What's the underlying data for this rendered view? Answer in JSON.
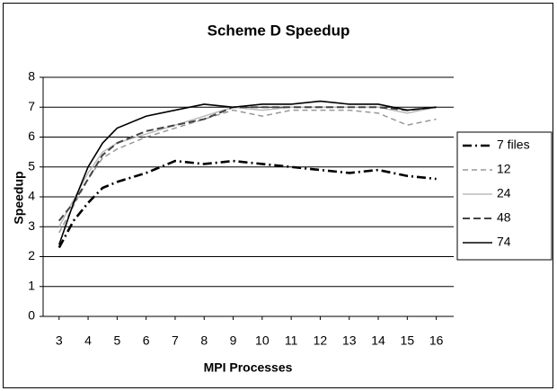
{
  "chart_data": {
    "type": "line",
    "title": "Scheme D Speedup",
    "x_label": "MPI Processes",
    "y_label": "Speedup",
    "x": [
      3,
      3.5,
      4,
      4.5,
      5,
      6,
      7,
      8,
      9,
      10,
      11,
      12,
      13,
      14,
      15,
      16
    ],
    "xlim": [
      2.45,
      16.6
    ],
    "xticks": [
      3,
      4,
      5,
      6,
      7,
      8,
      9,
      10,
      11,
      12,
      13,
      14,
      15,
      16
    ],
    "ylim": [
      0,
      8
    ],
    "yticks": [
      0,
      1,
      2,
      3,
      4,
      5,
      6,
      7,
      8
    ],
    "grid": true,
    "legend": "right",
    "series": [
      {
        "name": "7 files",
        "color": "#000000",
        "dash": "10 4 2 4",
        "width": 2.6,
        "values": [
          2.3,
          3.2,
          3.8,
          4.3,
          4.5,
          4.8,
          5.2,
          5.1,
          5.2,
          5.1,
          5.0,
          4.9,
          4.8,
          4.9,
          4.7,
          4.6
        ]
      },
      {
        "name": "12",
        "color": "#999999",
        "dash": "6 4",
        "width": 1.5,
        "values": [
          2.8,
          3.7,
          4.6,
          5.3,
          5.6,
          6.0,
          6.3,
          6.6,
          6.9,
          6.7,
          6.9,
          6.9,
          6.9,
          6.8,
          6.4,
          6.6
        ]
      },
      {
        "name": "24",
        "color": "#bbbbbb",
        "dash": "",
        "width": 1.5,
        "values": [
          3.0,
          3.9,
          4.8,
          5.5,
          5.8,
          6.1,
          6.4,
          6.7,
          7.0,
          6.9,
          7.0,
          7.0,
          7.0,
          7.0,
          6.8,
          7.0
        ]
      },
      {
        "name": "48",
        "color": "#444444",
        "dash": "8 4",
        "width": 2,
        "values": [
          3.2,
          3.8,
          4.6,
          5.4,
          5.8,
          6.2,
          6.4,
          6.6,
          7.0,
          7.0,
          7.0,
          7.0,
          7.0,
          7.0,
          6.9,
          7.0
        ]
      },
      {
        "name": "74",
        "color": "#000000",
        "dash": "",
        "width": 1.6,
        "values": [
          2.4,
          3.8,
          5.0,
          5.8,
          6.3,
          6.7,
          6.9,
          7.1,
          7.0,
          7.1,
          7.1,
          7.2,
          7.1,
          7.1,
          6.9,
          7.0
        ]
      }
    ]
  }
}
